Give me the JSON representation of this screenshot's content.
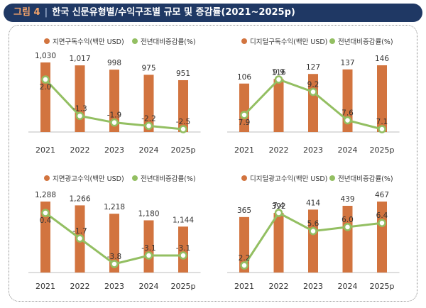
{
  "header": {
    "figure_label": "그림 4",
    "separator": "|",
    "title": "한국 신문유형별/수익구조별 규모 및 증감률(2021~2025p)"
  },
  "colors": {
    "bar": "#d2743f",
    "line": "#93bf62",
    "marker_fill": "#ffffff",
    "header_bg": "#1f3864",
    "text": "#333333"
  },
  "chart_data": [
    {
      "type": "bar",
      "title": "지면구독수익",
      "categories": [
        "2021",
        "2022",
        "2023",
        "2024",
        "2025p"
      ],
      "series": [
        {
          "name": "지면구독수익(백만 USD)",
          "kind": "bar",
          "values": [
            1030,
            1017,
            998,
            975,
            951
          ],
          "labels": [
            "1,030",
            "1,017",
            "998",
            "975",
            "951"
          ]
        },
        {
          "name": "전년대비증감률(%)",
          "kind": "line",
          "values": [
            2.0,
            -1.3,
            -1.9,
            -2.2,
            -2.5
          ],
          "labels": [
            "2.0",
            "-1.3",
            "-1.9",
            "-2.2",
            "-2.5"
          ]
        }
      ]
    },
    {
      "type": "bar",
      "title": "디지털구독수익",
      "categories": [
        "2021",
        "2022",
        "2023",
        "2024",
        "2025p"
      ],
      "series": [
        {
          "name": "디지털구독수익(백만 USD)",
          "kind": "bar",
          "values": [
            106,
            116,
            127,
            137,
            146
          ],
          "labels": [
            "106",
            "116",
            "127",
            "137",
            "146"
          ]
        },
        {
          "name": "전년대비증감률(%)",
          "kind": "line",
          "values": [
            7.9,
            9.9,
            9.2,
            7.6,
            7.1
          ],
          "labels": [
            "7.9",
            "9.9",
            "9.2",
            "7.6",
            "7.1"
          ]
        }
      ]
    },
    {
      "type": "bar",
      "title": "지면광고수익",
      "categories": [
        "2021",
        "2022",
        "2023",
        "2024",
        "2025p"
      ],
      "series": [
        {
          "name": "지면광고수익(백만 USD)",
          "kind": "bar",
          "values": [
            1288,
            1266,
            1218,
            1180,
            1144
          ],
          "labels": [
            "1,288",
            "1,266",
            "1,218",
            "1,180",
            "1,144"
          ]
        },
        {
          "name": "전년대비증감률(%)",
          "kind": "line",
          "values": [
            0.4,
            -1.7,
            -3.8,
            -3.1,
            -3.1
          ],
          "labels": [
            "0.4",
            "-1.7",
            "-3.8",
            "-3.1",
            "-3.1"
          ]
        }
      ]
    },
    {
      "type": "bar",
      "title": "디지털광고수익",
      "categories": [
        "2021",
        "2022",
        "2023",
        "2024",
        "2025p"
      ],
      "series": [
        {
          "name": "디지털광고수익(백만 USD)",
          "kind": "bar",
          "values": [
            365,
            392,
            414,
            439,
            467
          ],
          "labels": [
            "365",
            "392",
            "414",
            "439",
            "467"
          ]
        },
        {
          "name": "전년대비증감률(%)",
          "kind": "line",
          "values": [
            2.2,
            7.4,
            5.6,
            6.0,
            6.4
          ],
          "labels": [
            "2.2",
            "7.4",
            "5.6",
            "6.0",
            "6.4"
          ]
        }
      ]
    }
  ]
}
